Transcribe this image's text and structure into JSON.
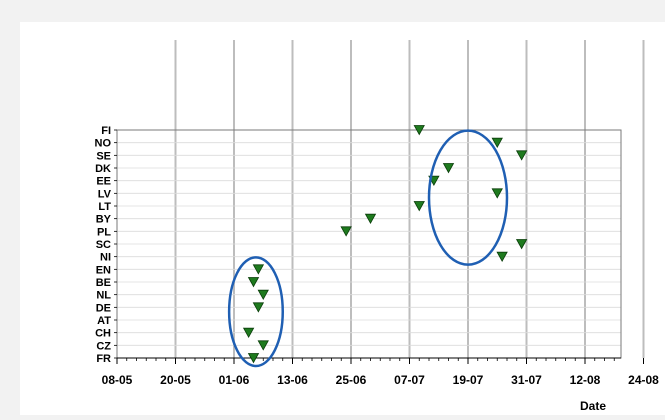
{
  "chart_data": {
    "type": "scatter",
    "title": "",
    "xlabel": "Date",
    "ylabel": "",
    "x_ticks": [
      "08-05",
      "20-05",
      "01-06",
      "13-06",
      "25-06",
      "07-07",
      "19-07",
      "31-07",
      "12-08",
      "24-08"
    ],
    "y_categories": [
      "FR",
      "CZ",
      "CH",
      "AT",
      "DE",
      "NL",
      "BE",
      "EN",
      "NI",
      "SC",
      "PL",
      "BY",
      "LT",
      "LV",
      "EE",
      "DK",
      "SE",
      "NO",
      "FI"
    ],
    "xlim": [
      "08-05",
      "24-08"
    ],
    "grid": "vertical",
    "marker": "triangle-down",
    "colors": {
      "marker_fill": "#1e7a1e",
      "marker_stroke": "#0a3d0a",
      "ellipse": "#1f5fb3",
      "grid": "#bdbdbd",
      "plot_bg": "#ffffff"
    },
    "points": [
      {
        "x": "05-06",
        "y": "FR"
      },
      {
        "x": "07-06",
        "y": "CZ"
      },
      {
        "x": "04-06",
        "y": "CH"
      },
      {
        "x": "06-06",
        "y": "DE"
      },
      {
        "x": "07-06",
        "y": "NL"
      },
      {
        "x": "05-06",
        "y": "BE"
      },
      {
        "x": "06-06",
        "y": "EN"
      },
      {
        "x": "26-07",
        "y": "NI"
      },
      {
        "x": "30-07",
        "y": "SC"
      },
      {
        "x": "24-06",
        "y": "PL"
      },
      {
        "x": "29-06",
        "y": "BY"
      },
      {
        "x": "09-07",
        "y": "LT"
      },
      {
        "x": "25-07",
        "y": "LV"
      },
      {
        "x": "12-07",
        "y": "EE"
      },
      {
        "x": "15-07",
        "y": "DK"
      },
      {
        "x": "30-07",
        "y": "SE"
      },
      {
        "x": "25-07",
        "y": "NO"
      },
      {
        "x": "09-07",
        "y": "FI"
      }
    ],
    "annotations": [
      {
        "type": "ellipse",
        "x_range": [
          "31-05",
          "11-06"
        ],
        "y_range": [
          "FR",
          "EN"
        ]
      },
      {
        "type": "ellipse",
        "x_range": [
          "11-07",
          "27-07"
        ],
        "y_range": [
          "NI",
          "NO"
        ]
      }
    ]
  }
}
